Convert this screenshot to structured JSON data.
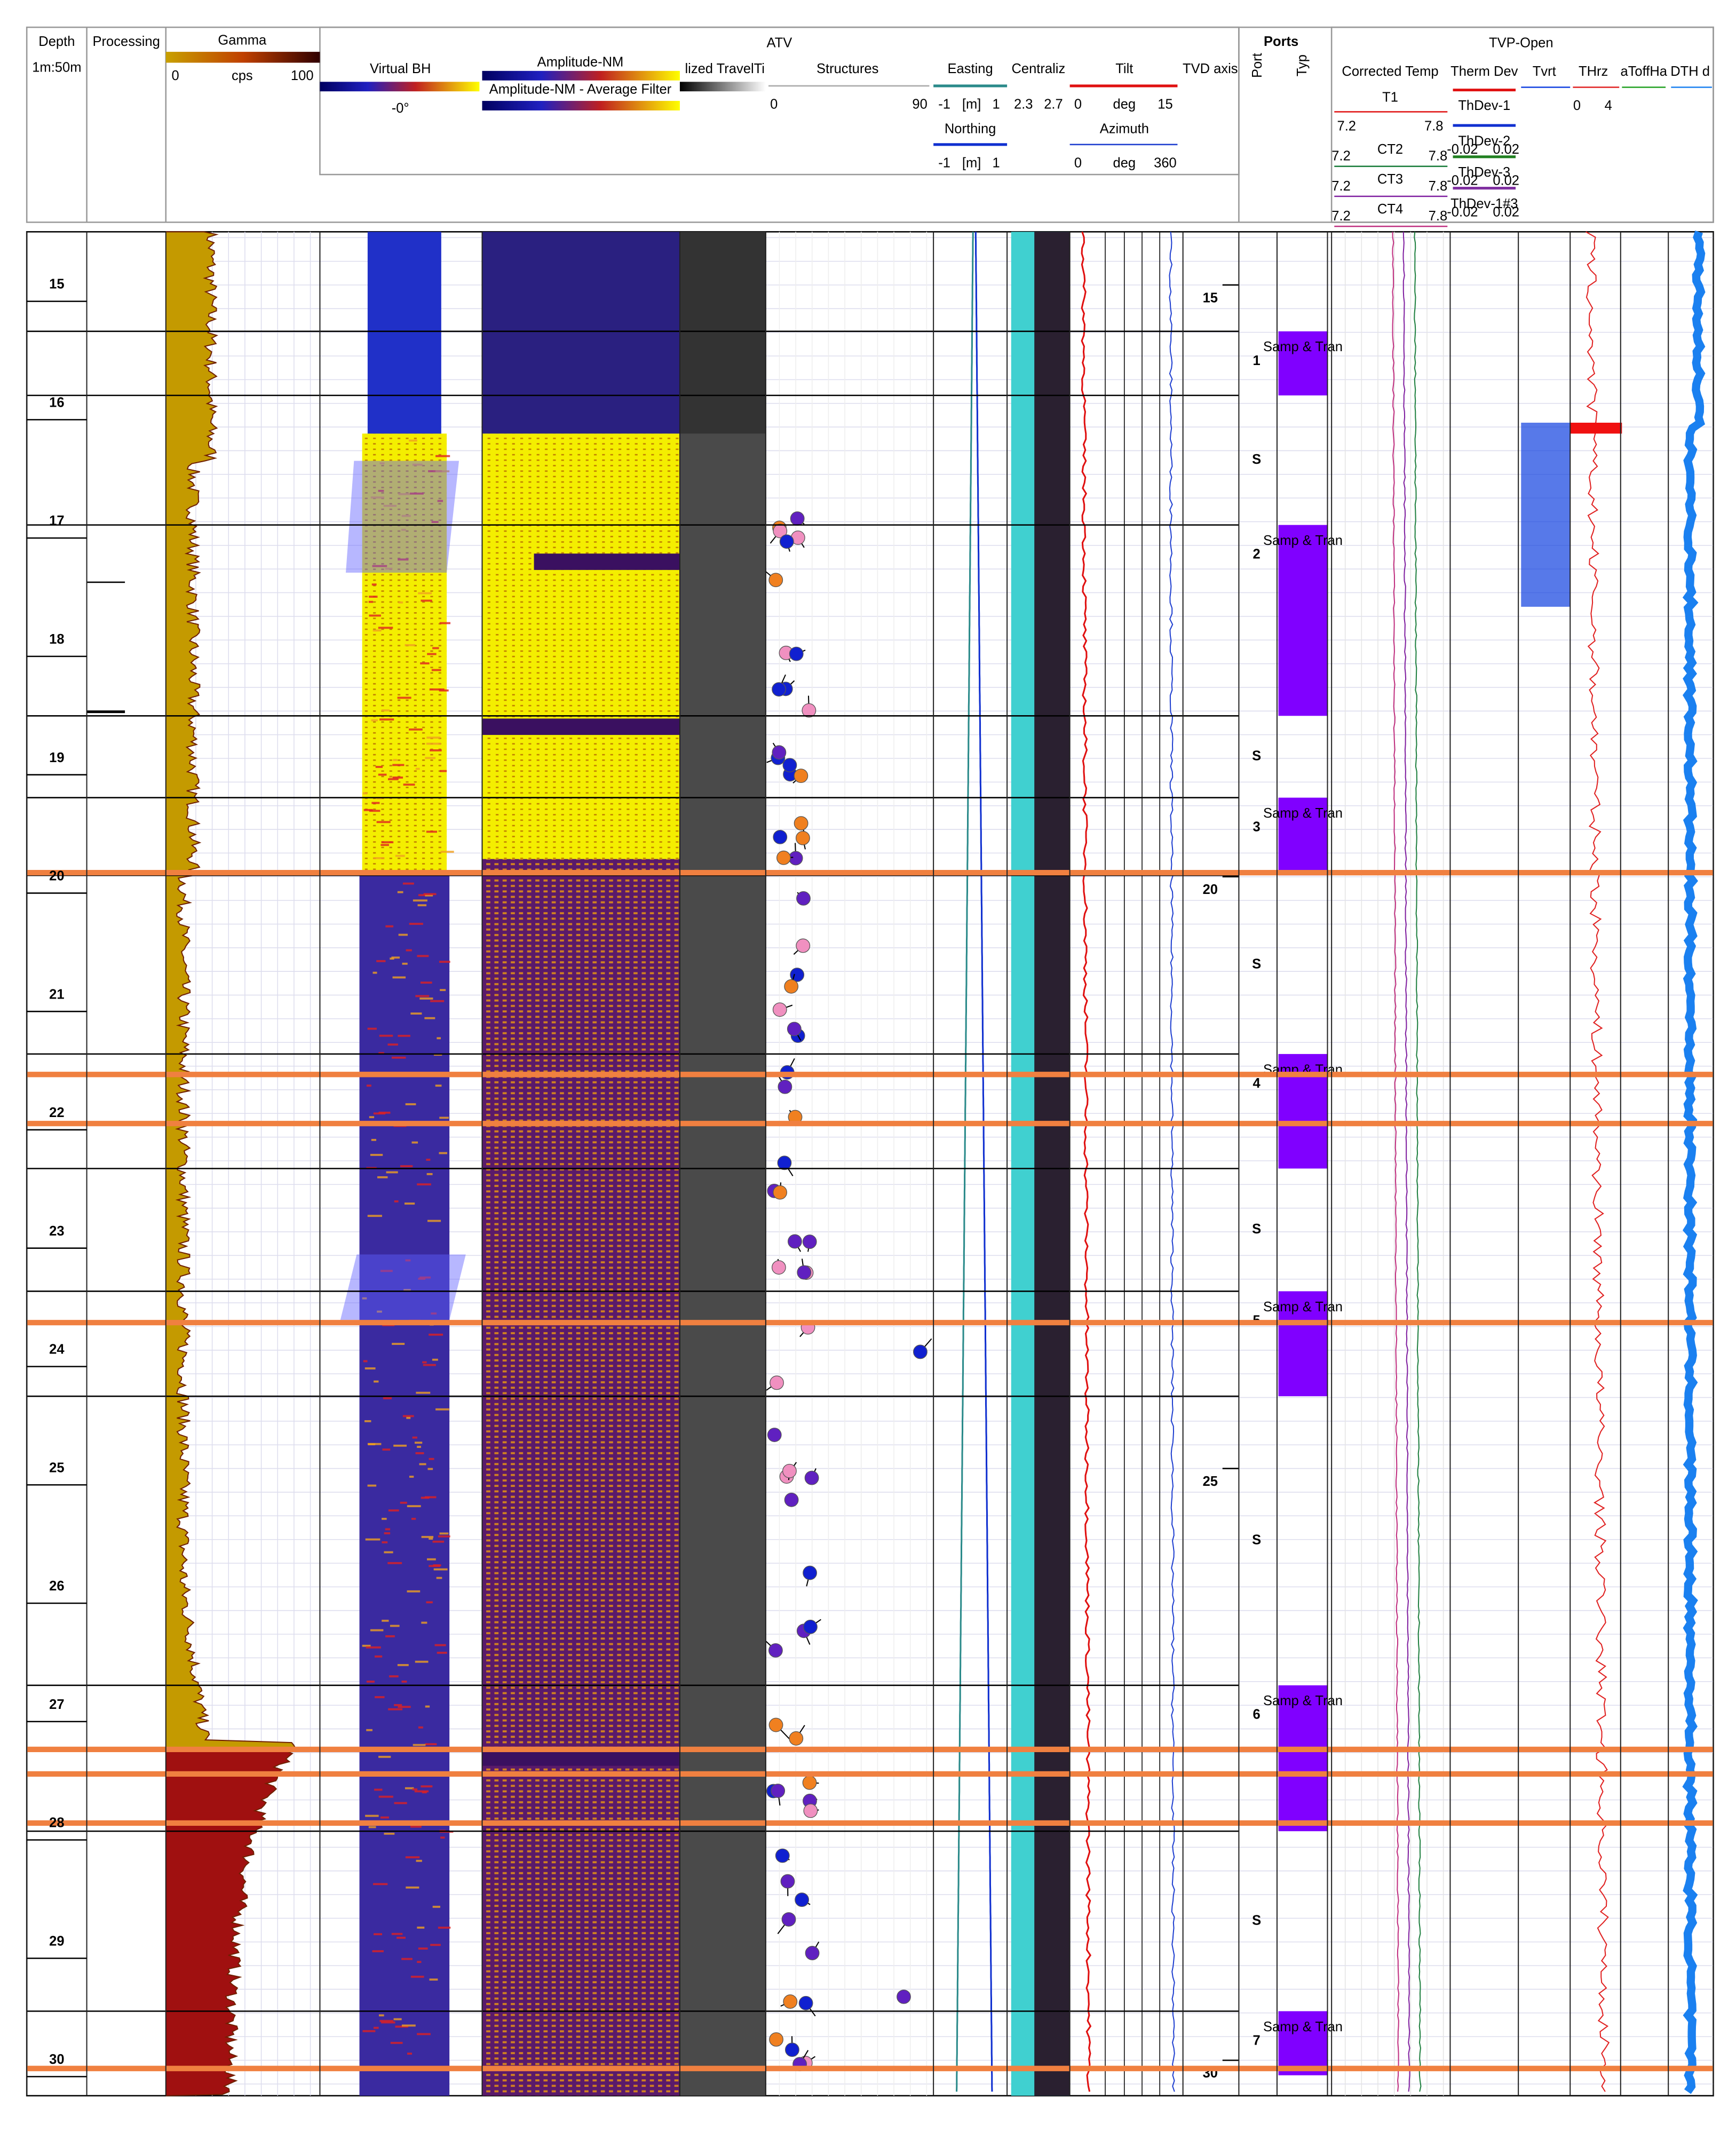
{
  "header": {
    "depth": "Depth",
    "scale": "1m:50m",
    "processing": "Processing",
    "gamma": {
      "title": "Gamma",
      "min": "0",
      "unit": "cps",
      "max": "100"
    },
    "atv": {
      "title": "ATV",
      "virtual_bh": "Virtual BH",
      "virtual_bh_angle": "-0°",
      "amplitude": "Amplitude-NM",
      "amplitude_avg": "Amplitude-NM - Average Filter",
      "travel_time": "lized TravelTi",
      "structures": "Structures",
      "structures_min": "0",
      "structures_max": "90",
      "easting": "Easting",
      "easting_scale": [
        "-1",
        "[m]",
        "1"
      ],
      "northing": "Northing",
      "northing_scale": [
        "-1",
        "[m]",
        "1"
      ],
      "centralizer": "Centraliz",
      "centralizer_scale": [
        "2.3",
        "2.7"
      ],
      "tilt": "Tilt",
      "tilt_scale": [
        "0",
        "deg",
        "15"
      ],
      "azimuth": "Azimuth",
      "azimuth_scale": [
        "0",
        "deg",
        "360"
      ],
      "tvd": "TVD axis"
    },
    "ports": {
      "title": "Ports",
      "port": "Port",
      "type": "Typ"
    },
    "tvp": {
      "title": "TVP-Open",
      "corrected_temp": "Corrected Temp",
      "t1": "T1",
      "t1_scale": [
        "7.2",
        "7.8"
      ],
      "ct": [
        {
          "name": "CT2",
          "min": "7.2",
          "max": "7.8"
        },
        {
          "name": "CT3",
          "min": "7.2",
          "max": "7.8"
        },
        {
          "name": "CT4",
          "min": "7.2",
          "max": "7.8"
        }
      ],
      "therm_dev": "Therm Dev",
      "thdev": [
        "ThDev-1",
        "ThDev-2",
        "ThDev-3",
        "ThDev-1#3"
      ],
      "thdev_scale": [
        "-0.02",
        "0.02"
      ],
      "tvrt": "Tvrt",
      "thrz": "THrz",
      "thrz_scale": [
        "0",
        "4"
      ],
      "toff": "aToffHa",
      "dth": "DTH d"
    }
  },
  "depth_ticks": [
    15,
    16,
    17,
    18,
    19,
    20,
    21,
    22,
    23,
    24,
    25,
    26,
    27,
    28,
    29,
    30
  ],
  "tvd_ticks": [
    15,
    20,
    25,
    30
  ],
  "ports": [
    {
      "label": "1",
      "type": "Samp & Tran"
    },
    {
      "label": "S"
    },
    {
      "label": "2",
      "type": "Samp & Tran"
    },
    {
      "label": "S"
    },
    {
      "label": "3",
      "type": "Samp & Tran"
    },
    {
      "label": "S"
    },
    {
      "label": "4",
      "type": "Samp & Tran"
    },
    {
      "label": "S"
    },
    {
      "label": "5",
      "type": "Samp & Tran"
    },
    {
      "label": "S"
    },
    {
      "label": "6",
      "type": "Samp & Tran"
    },
    {
      "label": "S"
    },
    {
      "label": "7",
      "type": "Samp & Tran"
    }
  ]
}
